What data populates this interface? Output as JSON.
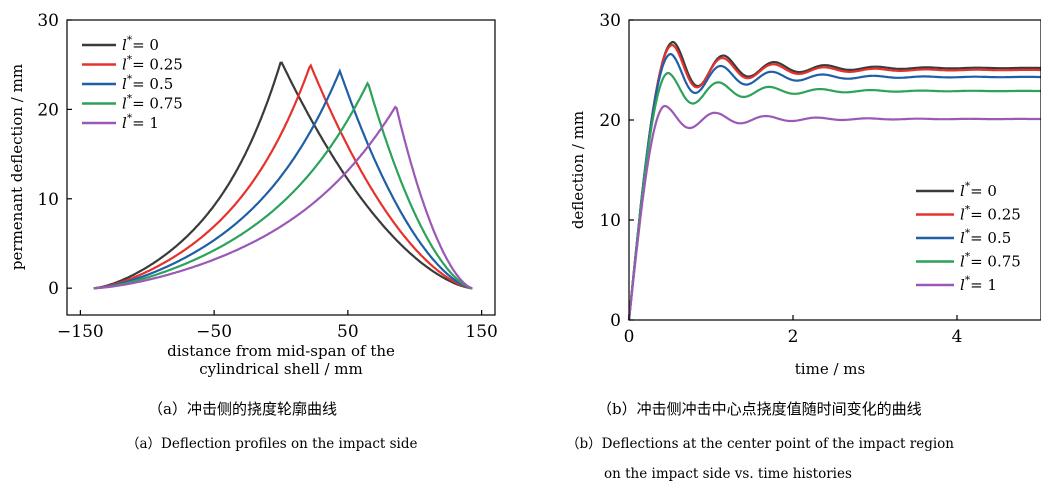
{
  "legend_prefix": "l",
  "legend_sup": "*",
  "chart_data": [
    {
      "type": "line",
      "xlabel_lines": [
        "distance from mid-span of the",
        "cylindrical shell / mm"
      ],
      "ylabel": "permenant deflection / mm",
      "xlim": [
        -160,
        160
      ],
      "ylim": [
        -3,
        30
      ],
      "xticks": [
        -150,
        -50,
        50,
        150
      ],
      "yticks": [
        0,
        10,
        20,
        30
      ],
      "legend_position": "top-left",
      "series": [
        {
          "name": "= 0",
          "color": "#3a3a3a",
          "peak_x": 0,
          "peak_y": 25.4
        },
        {
          "name": "= 0.25",
          "color": "#e5322d",
          "peak_x": 22,
          "peak_y": 25.0
        },
        {
          "name": "= 0.5",
          "color": "#1f5fa8",
          "peak_x": 44,
          "peak_y": 24.3
        },
        {
          "name": "= 0.75",
          "color": "#2ca25a",
          "peak_x": 65,
          "peak_y": 23.0
        },
        {
          "name": "= 1",
          "color": "#9b59b6",
          "peak_x": 86,
          "peak_y": 20.4
        }
      ]
    },
    {
      "type": "line",
      "xlabel": "time / ms",
      "ylabel": "deflection / mm",
      "xlim": [
        0,
        5
      ],
      "ylim": [
        0,
        30
      ],
      "xticks": [
        0,
        2,
        4
      ],
      "yticks": [
        0,
        10,
        20,
        30
      ],
      "legend_position": "bottom-right",
      "series": [
        {
          "name": "= 0",
          "color": "#3a3a3a",
          "final_value": 25.2,
          "peak_time": 0.54,
          "peak_value": 27.8
        },
        {
          "name": "= 0.25",
          "color": "#e5322d",
          "final_value": 25.0,
          "peak_time": 0.53,
          "peak_value": 27.5
        },
        {
          "name": "= 0.5",
          "color": "#1f5fa8",
          "final_value": 24.3,
          "peak_time": 0.51,
          "peak_value": 26.6
        },
        {
          "name": "= 0.75",
          "color": "#2ca25a",
          "final_value": 22.9,
          "peak_time": 0.48,
          "peak_value": 24.7
        },
        {
          "name": "= 1",
          "color": "#9b59b6",
          "final_value": 20.1,
          "peak_time": 0.44,
          "peak_value": 21.4
        }
      ]
    }
  ],
  "captions": {
    "a_cn": "（a）冲击侧的挠度轮廓曲线",
    "a_en": "（a）Deflection profiles on the impact side",
    "b_cn": "（b）冲击侧冲击中心点挠度值随时间变化的曲线",
    "b_en_1": "（b）Deflections at the center point of the impact region",
    "b_en_2": "on the impact side vs. time histories"
  }
}
